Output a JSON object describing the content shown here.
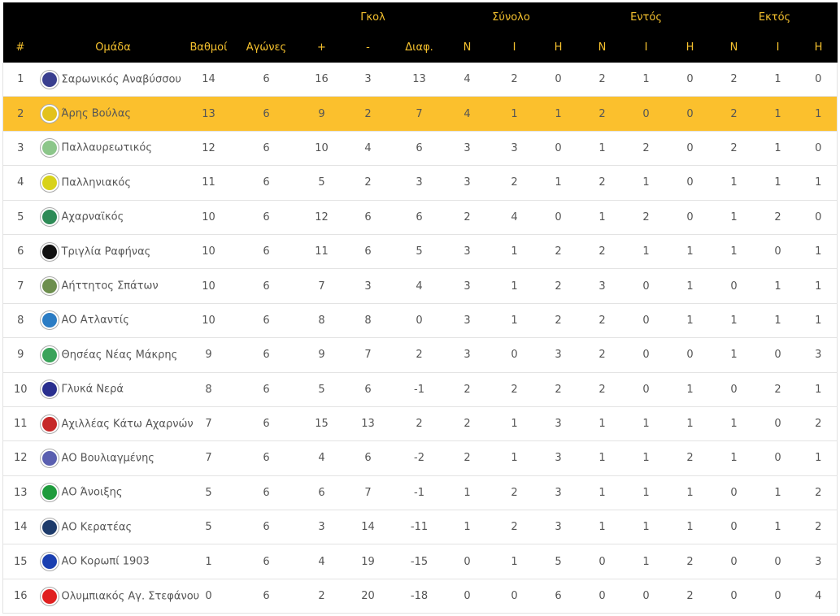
{
  "header": {
    "groups": {
      "goals": "Γκολ",
      "total": "Σύνολο",
      "home": "Εντός",
      "away": "Εκτός"
    },
    "columns": [
      "#",
      "Ομάδα",
      "Βαθμοί",
      "Αγώνες",
      "+",
      "-",
      "Διαφ.",
      "Ν",
      "Ι",
      "Η",
      "Ν",
      "Ι",
      "Η",
      "Ν",
      "Ι",
      "Η"
    ]
  },
  "highlight_color": "#fbc02d",
  "rows": [
    {
      "pos": "1",
      "team": "Σαρωνικός Αναβύσσου",
      "logo": "#3a3f8f",
      "vals": [
        "14",
        "6",
        "16",
        "3",
        "13",
        "4",
        "2",
        "0",
        "2",
        "1",
        "0",
        "2",
        "1",
        "0"
      ]
    },
    {
      "pos": "2",
      "team": "Άρης Βούλας",
      "logo": "#e3c21c",
      "highlight": true,
      "vals": [
        "13",
        "6",
        "9",
        "2",
        "7",
        "4",
        "1",
        "1",
        "2",
        "0",
        "0",
        "2",
        "1",
        "1"
      ]
    },
    {
      "pos": "3",
      "team": "Παλλαυρεωτικός",
      "logo": "#8cc68a",
      "vals": [
        "12",
        "6",
        "10",
        "4",
        "6",
        "3",
        "3",
        "0",
        "1",
        "2",
        "0",
        "2",
        "1",
        "0"
      ]
    },
    {
      "pos": "4",
      "team": "Παλληνιακός",
      "logo": "#d8d21a",
      "vals": [
        "11",
        "6",
        "5",
        "2",
        "3",
        "3",
        "2",
        "1",
        "2",
        "1",
        "0",
        "1",
        "1",
        "1"
      ]
    },
    {
      "pos": "5",
      "team": "Αχαρναϊκός",
      "logo": "#2e8b57",
      "vals": [
        "10",
        "6",
        "12",
        "6",
        "6",
        "2",
        "4",
        "0",
        "1",
        "2",
        "0",
        "1",
        "2",
        "0"
      ]
    },
    {
      "pos": "6",
      "team": "Τριγλία Ραφήνας",
      "logo": "#111111",
      "vals": [
        "10",
        "6",
        "11",
        "6",
        "5",
        "3",
        "1",
        "2",
        "2",
        "1",
        "1",
        "1",
        "0",
        "1"
      ]
    },
    {
      "pos": "7",
      "team": "Αήττητος Σπάτων",
      "logo": "#6d8f4e",
      "vals": [
        "10",
        "6",
        "7",
        "3",
        "4",
        "3",
        "1",
        "2",
        "3",
        "0",
        "1",
        "0",
        "1",
        "1"
      ]
    },
    {
      "pos": "8",
      "team": "ΑΟ Ατλαντίς",
      "logo": "#2b7cc4",
      "vals": [
        "10",
        "6",
        "8",
        "8",
        "0",
        "3",
        "1",
        "2",
        "2",
        "0",
        "1",
        "1",
        "1",
        "1"
      ]
    },
    {
      "pos": "9",
      "team": "Θησέας Νέας Μάκρης",
      "logo": "#3aa35a",
      "vals": [
        "9",
        "6",
        "9",
        "7",
        "2",
        "3",
        "0",
        "3",
        "2",
        "0",
        "0",
        "1",
        "0",
        "3"
      ]
    },
    {
      "pos": "10",
      "team": "Γλυκά Νερά",
      "logo": "#2a2f8f",
      "vals": [
        "8",
        "6",
        "5",
        "6",
        "-1",
        "2",
        "2",
        "2",
        "2",
        "0",
        "1",
        "0",
        "2",
        "1"
      ]
    },
    {
      "pos": "11",
      "team": "Αχιλλέας Κάτω Αχαρνών",
      "logo": "#c62828",
      "vals": [
        "7",
        "6",
        "15",
        "13",
        "2",
        "2",
        "1",
        "3",
        "1",
        "1",
        "1",
        "1",
        "0",
        "2"
      ]
    },
    {
      "pos": "12",
      "team": "ΑΟ Βουλιαγμένης",
      "logo": "#5a5fb0",
      "vals": [
        "7",
        "6",
        "4",
        "6",
        "-2",
        "2",
        "1",
        "3",
        "1",
        "1",
        "2",
        "1",
        "0",
        "1"
      ]
    },
    {
      "pos": "13",
      "team": "ΑΟ Άνοιξης",
      "logo": "#1e9b3c",
      "vals": [
        "5",
        "6",
        "6",
        "7",
        "-1",
        "1",
        "2",
        "3",
        "1",
        "1",
        "1",
        "0",
        "1",
        "2"
      ]
    },
    {
      "pos": "14",
      "team": "ΑΟ Κερατέας",
      "logo": "#1d3b6b",
      "vals": [
        "5",
        "6",
        "3",
        "14",
        "-11",
        "1",
        "2",
        "3",
        "1",
        "1",
        "1",
        "0",
        "1",
        "2"
      ]
    },
    {
      "pos": "15",
      "team": "ΑΟ Κορωπί 1903",
      "logo": "#1a3fb0",
      "vals": [
        "1",
        "6",
        "4",
        "19",
        "-15",
        "0",
        "1",
        "5",
        "0",
        "1",
        "2",
        "0",
        "0",
        "3"
      ]
    },
    {
      "pos": "16",
      "team": "Ολυμπιακός Αγ. Στεφάνου",
      "logo": "#e02020",
      "vals": [
        "0",
        "6",
        "2",
        "20",
        "-18",
        "0",
        "0",
        "6",
        "0",
        "0",
        "2",
        "0",
        "0",
        "4"
      ]
    }
  ]
}
